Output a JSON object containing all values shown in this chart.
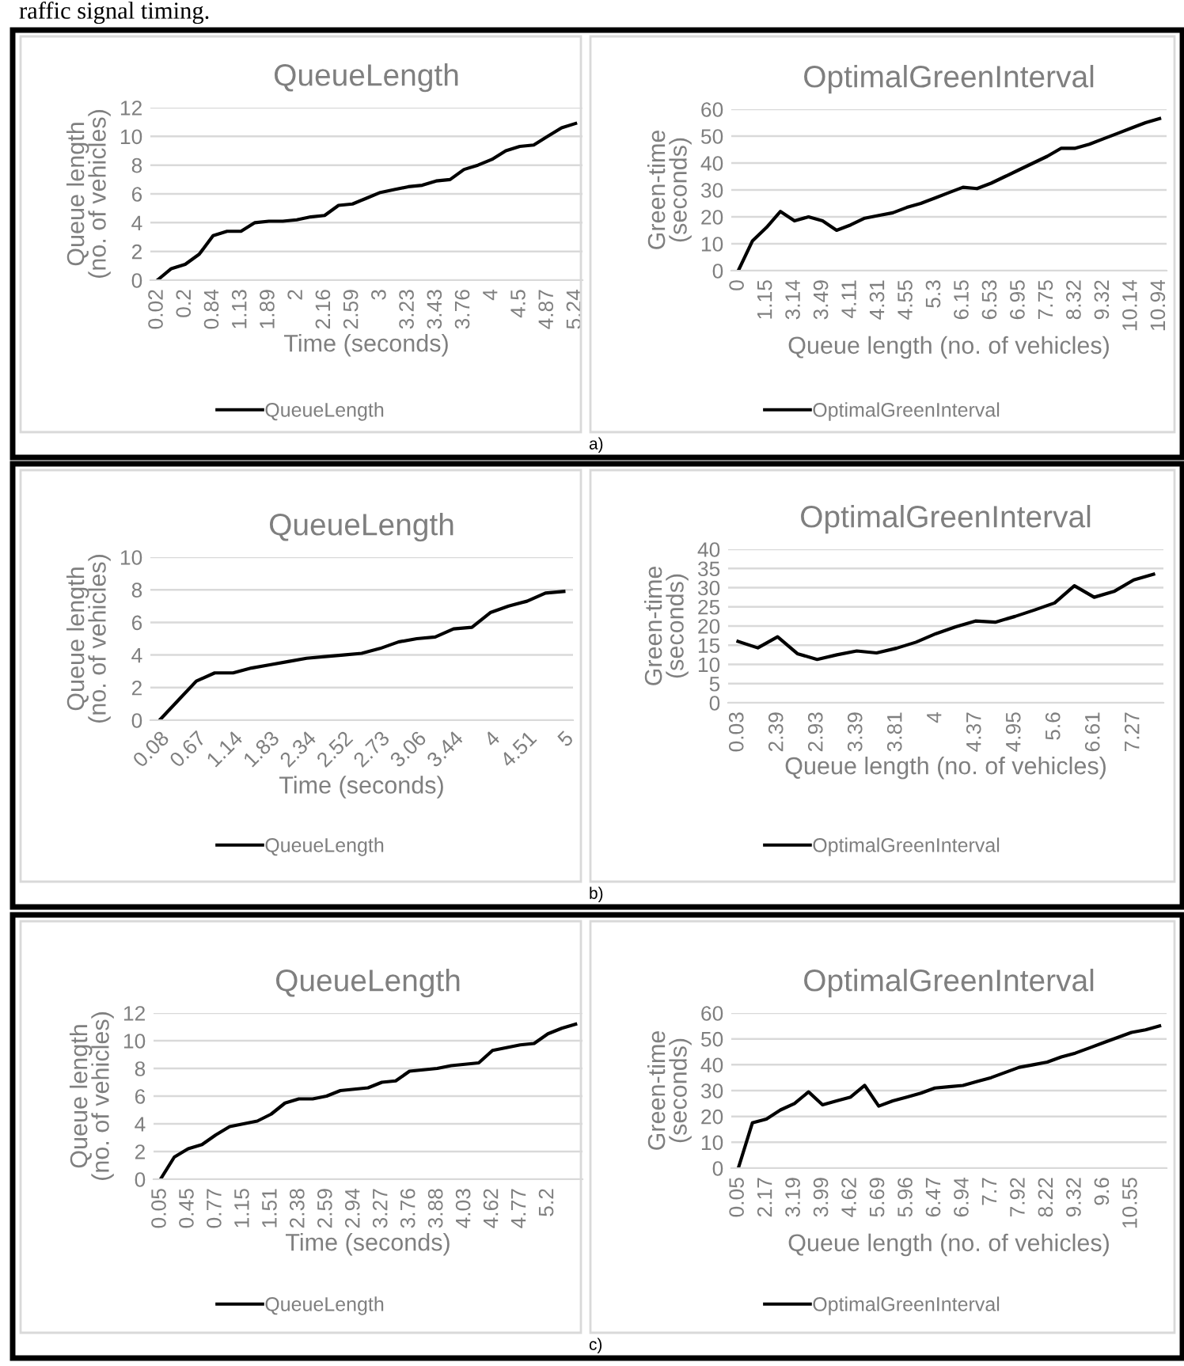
{
  "chart_data": [
    {
      "type": "line",
      "title": "QueueLength",
      "xlabel": "Time (seconds)",
      "ylabel": "Queue length\n(no. of vehicles)",
      "annotations": [
        "raffic signal timing."
      ],
      "categories": [
        "0.02",
        null,
        "0.2",
        null,
        "0.84",
        null,
        "1.13",
        null,
        "1.89",
        null,
        "2",
        null,
        "2.16",
        null,
        "2.59",
        null,
        "3",
        null,
        "3.23",
        null,
        "3.43",
        null,
        "3.76",
        null,
        "4",
        null,
        "4.5",
        null,
        "4.87",
        null,
        "5.24"
      ],
      "series": [
        {
          "name": "QueueLength",
          "color": "#000000",
          "values": [
            0,
            0.8,
            1.1,
            1.8,
            3.1,
            3.4,
            3.4,
            4.0,
            4.1,
            4.1,
            4.2,
            4.4,
            4.5,
            5.2,
            5.3,
            5.7,
            6.1,
            6.3,
            6.5,
            6.6,
            6.9,
            7.0,
            7.7,
            8.0,
            8.4,
            9.0,
            9.3,
            9.4,
            10.0,
            10.6,
            10.9
          ]
        }
      ],
      "ylim": [
        0,
        12
      ],
      "yticks": [
        0,
        2,
        4,
        6,
        8,
        10,
        12
      ],
      "grid": "y",
      "legend": "bottom"
    },
    {
      "type": "line",
      "title": "OptimalGreenInterval",
      "xlabel": "Queue length (no. of vehicles)",
      "ylabel": "Green-time\n(seconds)",
      "annotations": [
        "a)"
      ],
      "categories": [
        "0",
        null,
        "1.15",
        null,
        "3.14",
        null,
        "3.49",
        null,
        "4.11",
        null,
        "4.31",
        null,
        "4.55",
        null,
        "5.3",
        null,
        "6.15",
        null,
        "6.53",
        null,
        "6.95",
        null,
        "7.75",
        null,
        "8.32",
        null,
        "9.32",
        null,
        "10.14",
        null,
        "10.94"
      ],
      "series": [
        {
          "name": "OptimalGreenInterval",
          "color": "#000000",
          "values": [
            0,
            11,
            16,
            22,
            18.5,
            20,
            18.5,
            15,
            17,
            19.5,
            20.5,
            21.5,
            23.5,
            25,
            27,
            29,
            31,
            30.5,
            32.5,
            35,
            37.5,
            40,
            42.5,
            45.5,
            45.5,
            47,
            49,
            51,
            53,
            55,
            56.5
          ]
        }
      ],
      "ylim": [
        0,
        60
      ],
      "yticks": [
        0,
        10,
        20,
        30,
        40,
        50,
        60
      ],
      "grid": "y",
      "legend": "bottom"
    },
    {
      "type": "line",
      "title": "QueueLength",
      "xlabel": "Time (seconds)",
      "ylabel": "Queue length\n(no. of vehicles)",
      "categories": [
        "0.08",
        null,
        "0.67",
        null,
        "1.14",
        null,
        "1.83",
        null,
        "2.34",
        null,
        "2.52",
        null,
        "2.73",
        null,
        "3.06",
        null,
        "3.44",
        null,
        "4",
        null,
        "4.51",
        null,
        "5"
      ],
      "series": [
        {
          "name": "QueueLength",
          "color": "#000000",
          "values": [
            0,
            1.2,
            2.4,
            2.9,
            2.9,
            3.2,
            3.4,
            3.6,
            3.8,
            3.9,
            4.0,
            4.1,
            4.4,
            4.8,
            5.0,
            5.1,
            5.6,
            5.7,
            6.6,
            7.0,
            7.3,
            7.8,
            7.9
          ]
        }
      ],
      "ylim": [
        0,
        10
      ],
      "yticks": [
        0,
        2,
        4,
        6,
        8,
        10
      ],
      "grid": "y",
      "legend": "bottom"
    },
    {
      "type": "line",
      "title": "OptimalGreenInterval",
      "xlabel": "Queue length (no. of vehicles)",
      "ylabel": "Green-time\n(seconds)",
      "annotations": [
        "b)"
      ],
      "categories": [
        "0.03",
        null,
        "2.39",
        null,
        "2.93",
        null,
        "3.39",
        null,
        "3.81",
        null,
        "4",
        null,
        "4.37",
        null,
        "4.95",
        null,
        "5.6",
        null,
        "6.61",
        null,
        "7.27",
        null
      ],
      "series": [
        {
          "name": "OptimalGreenInterval",
          "color": "#000000",
          "values": [
            16,
            14.3,
            17.2,
            12.8,
            11.3,
            12.5,
            13.5,
            13,
            14.2,
            15.8,
            18,
            19.8,
            21.3,
            21,
            22.5,
            24.2,
            26,
            30.5,
            27.5,
            29,
            32,
            33.5
          ]
        }
      ],
      "ylim": [
        0,
        40
      ],
      "yticks": [
        0,
        5,
        10,
        15,
        20,
        25,
        30,
        35,
        40
      ],
      "grid": "y",
      "legend": "bottom"
    },
    {
      "type": "line",
      "title": "QueueLength",
      "xlabel": "Time (seconds)",
      "ylabel": "Queue length\n(no. of vehicles)",
      "categories": [
        "0.05",
        null,
        "0.45",
        null,
        "0.77",
        null,
        "1.15",
        null,
        "1.51",
        null,
        "2.38",
        null,
        "2.59",
        null,
        "2.94",
        null,
        "3.27",
        null,
        "3.76",
        null,
        "3.88",
        null,
        "4.03",
        null,
        "4.62",
        null,
        "4.77",
        null,
        "5.2",
        null,
        null
      ],
      "series": [
        {
          "name": "QueueLength",
          "color": "#000000",
          "values": [
            0,
            1.6,
            2.2,
            2.5,
            3.2,
            3.8,
            4.0,
            4.2,
            4.7,
            5.5,
            5.8,
            5.8,
            6.0,
            6.4,
            6.5,
            6.6,
            7.0,
            7.1,
            7.8,
            7.9,
            8.0,
            8.2,
            8.3,
            8.4,
            9.3,
            9.5,
            9.7,
            9.8,
            10.5,
            10.9,
            11.2
          ]
        }
      ],
      "ylim": [
        0,
        12
      ],
      "yticks": [
        0,
        2,
        4,
        6,
        8,
        10,
        12
      ],
      "grid": "y",
      "legend": "bottom"
    },
    {
      "type": "line",
      "title": "OptimalGreenInterval",
      "xlabel": "Queue length (no. of vehicles)",
      "ylabel": "Green-time\n(seconds)",
      "annotations": [
        "c)"
      ],
      "categories": [
        "0.05",
        null,
        "2.17",
        null,
        "3.19",
        null,
        "3.99",
        null,
        "4.62",
        null,
        "5.69",
        null,
        "5.96",
        null,
        "6.47",
        null,
        "6.94",
        null,
        "7.7",
        null,
        "7.92",
        null,
        "8.22",
        null,
        "9.32",
        null,
        "9.6",
        null,
        "10.55",
        null,
        null
      ],
      "series": [
        {
          "name": "OptimalGreenInterval",
          "color": "#000000",
          "values": [
            0,
            17.5,
            19,
            22.5,
            25,
            29.5,
            24.5,
            26,
            27.5,
            32,
            24,
            26,
            27.5,
            29,
            31,
            31.5,
            32,
            33.5,
            35,
            37,
            39,
            40,
            41,
            43,
            44.5,
            46.5,
            48.5,
            50.5,
            52.5,
            53.5,
            55
          ]
        }
      ],
      "ylim": [
        0,
        60
      ],
      "yticks": [
        0,
        10,
        20,
        30,
        40,
        50,
        60
      ],
      "grid": "y",
      "legend": "bottom"
    }
  ]
}
